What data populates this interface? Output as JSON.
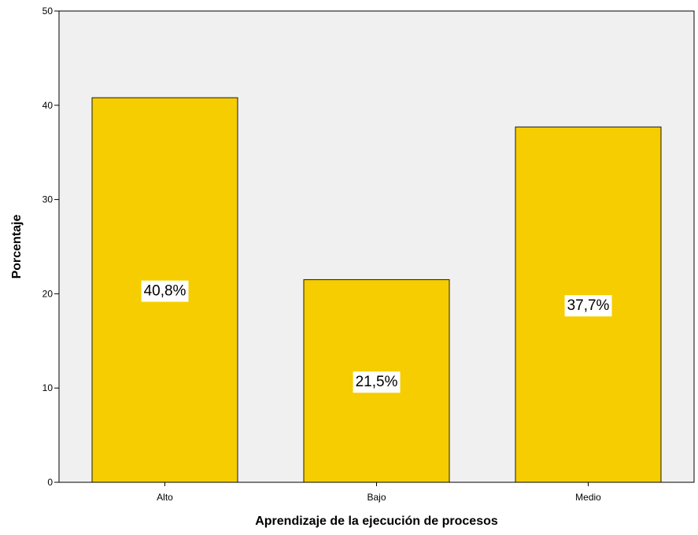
{
  "chart_data": {
    "type": "bar",
    "categories": [
      "Alto",
      "Bajo",
      "Medio"
    ],
    "values": [
      40.8,
      21.5,
      37.7
    ],
    "data_labels": [
      "40,8%",
      "21,5%",
      "37,7%"
    ],
    "xlabel": "Aprendizaje de la ejecución de procesos",
    "ylabel": "Porcentaje",
    "ylim": [
      0,
      50
    ],
    "yticks": [
      0,
      10,
      20,
      30,
      40,
      50
    ],
    "ytick_labels": [
      "0",
      "10",
      "20",
      "30",
      "40",
      "50"
    ],
    "grid": false,
    "legend": "none",
    "colors": {
      "bar_fill": "#f5cd00",
      "bar_stroke": "#1a1a1a",
      "plot_background": "#f0f0f0",
      "axis": "#000000",
      "label_box": "#ffffff"
    }
  }
}
